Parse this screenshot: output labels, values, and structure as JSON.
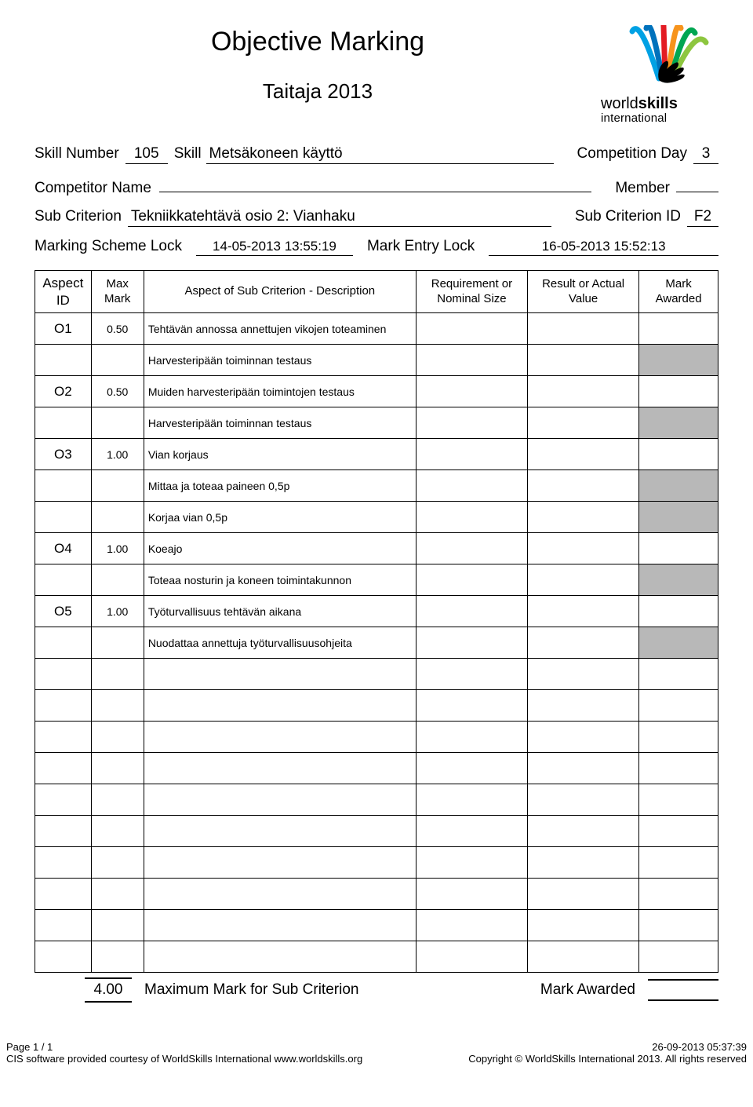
{
  "title": "Objective Marking",
  "subtitle": "Taitaja 2013",
  "logo": {
    "brand_word1": "world",
    "brand_word2": "skills",
    "brand_sub": "international",
    "streaks": [
      "#00a1e4",
      "#0072bc",
      "#e31b23",
      "#f7941d",
      "#00a651",
      "#8dc63f"
    ],
    "hand_fill": "#000000"
  },
  "meta": {
    "skill_number_label": "Skill Number",
    "skill_number": "105",
    "skill_label": "Skill",
    "skill_name": "Metsäkoneen käyttö",
    "competition_day_label": "Competition Day",
    "competition_day": "3",
    "competitor_name_label": "Competitor Name",
    "competitor_name": "",
    "member_label": "Member",
    "member": "",
    "sub_criterion_label": "Sub Criterion",
    "sub_criterion": "Tekniikkatehtävä osio 2: Vianhaku",
    "sub_criterion_id_label": "Sub Criterion ID",
    "sub_criterion_id": "F2",
    "marking_scheme_lock_label": "Marking Scheme Lock",
    "marking_scheme_lock": "14-05-2013  13:55:19",
    "mark_entry_lock_label": "Mark Entry Lock",
    "mark_entry_lock": "16-05-2013  15:52:13"
  },
  "table": {
    "headers": {
      "aspect_id": "Aspect ID",
      "max_mark": "Max Mark",
      "description": "Aspect of Sub Criterion - Description",
      "requirement": "Requirement or Nominal Size",
      "result": "Result or Actual Value",
      "awarded": "Mark Awarded"
    },
    "rows": [
      {
        "id": "O1",
        "mark": "0.50",
        "desc": "Tehtävän annossa annettujen vikojen toteaminen",
        "shaded": false
      },
      {
        "id": "",
        "mark": "",
        "desc": "Harvesteripään toiminnan testaus",
        "shaded": true
      },
      {
        "id": "O2",
        "mark": "0.50",
        "desc": "Muiden harvesteripään toimintojen testaus",
        "shaded": false
      },
      {
        "id": "",
        "mark": "",
        "desc": "Harvesteripään toiminnan testaus",
        "shaded": true
      },
      {
        "id": "O3",
        "mark": "1.00",
        "desc": "Vian korjaus",
        "shaded": false
      },
      {
        "id": "",
        "mark": "",
        "desc": "Mittaa ja toteaa paineen 0,5p",
        "shaded": true
      },
      {
        "id": "",
        "mark": "",
        "desc": "Korjaa vian 0,5p",
        "shaded": true
      },
      {
        "id": "O4",
        "mark": "1.00",
        "desc": "Koeajo",
        "shaded": false
      },
      {
        "id": "",
        "mark": "",
        "desc": "Toteaa nosturin ja koneen toimintakunnon",
        "shaded": true
      },
      {
        "id": "O5",
        "mark": "1.00",
        "desc": "Työturvallisuus tehtävän aikana",
        "shaded": false
      },
      {
        "id": "",
        "mark": "",
        "desc": "Nuodattaa annettuja työturvallisuusohjeita",
        "shaded": true
      },
      {
        "id": "",
        "mark": "",
        "desc": "",
        "shaded": false
      },
      {
        "id": "",
        "mark": "",
        "desc": "",
        "shaded": false
      },
      {
        "id": "",
        "mark": "",
        "desc": "",
        "shaded": false
      },
      {
        "id": "",
        "mark": "",
        "desc": "",
        "shaded": false
      },
      {
        "id": "",
        "mark": "",
        "desc": "",
        "shaded": false
      },
      {
        "id": "",
        "mark": "",
        "desc": "",
        "shaded": false
      },
      {
        "id": "",
        "mark": "",
        "desc": "",
        "shaded": false
      },
      {
        "id": "",
        "mark": "",
        "desc": "",
        "shaded": false
      },
      {
        "id": "",
        "mark": "",
        "desc": "",
        "shaded": false
      },
      {
        "id": "",
        "mark": "",
        "desc": "",
        "shaded": false
      }
    ]
  },
  "summary": {
    "total": "4.00",
    "max_label": "Maximum Mark for Sub Criterion",
    "awarded_label": "Mark Awarded"
  },
  "footer": {
    "page": "Page 1 / 1",
    "timestamp": "26-09-2013  05:37:39",
    "left": "CIS software provided courtesy of WorldSkills International www.worldskills.org",
    "right": "Copyright © WorldSkills International 2013. All rights reserved"
  }
}
